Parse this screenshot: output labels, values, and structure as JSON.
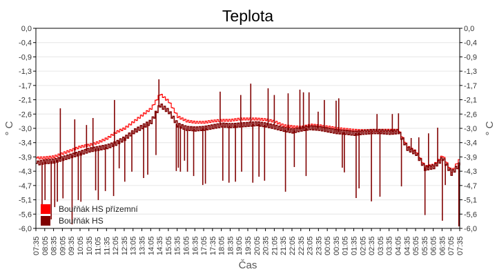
{
  "chart_data": {
    "type": "line",
    "title": "Teplota",
    "xlabel": "Čas",
    "ylabel": "° C",
    "ylabel_right": "° C",
    "ylim": [
      -6.0,
      0.0
    ],
    "y_ticks": [
      "0,0",
      "-0,4",
      "-0,9",
      "-1,3",
      "-1,7",
      "-2,1",
      "-2,6",
      "-3,0",
      "-3,4",
      "-3,9",
      "-4,3",
      "-4,7",
      "-5,1",
      "-5,6",
      "-6,0"
    ],
    "x_ticks": [
      "07:35",
      "08:05",
      "08:35",
      "09:05",
      "09:35",
      "10:05",
      "10:35",
      "11:05",
      "11:35",
      "12:05",
      "12:35",
      "13:05",
      "13:35",
      "14:05",
      "14:35",
      "15:05",
      "15:35",
      "16:05",
      "16:35",
      "17:05",
      "17:35",
      "18:05",
      "18:35",
      "19:05",
      "19:35",
      "20:05",
      "20:35",
      "21:05",
      "21:35",
      "22:05",
      "22:35",
      "23:05",
      "23:35",
      "00:05",
      "00:35",
      "01:05",
      "01:35",
      "02:05",
      "02:35",
      "03:05",
      "03:35",
      "04:05",
      "04:35",
      "05:05",
      "05:35",
      "06:05",
      "06:35",
      "07:05",
      "07:35"
    ],
    "grid": "horizontal",
    "legend_position": "bottom-left",
    "series": [
      {
        "name": "Bouřňák HS přízemní",
        "color": "#ff0000",
        "values": [
          -3.89,
          -3.88,
          -3.85,
          -3.75,
          -3.65,
          -3.55,
          -3.5,
          -3.42,
          -3.3,
          -3.12,
          -3.0,
          -2.8,
          -2.6,
          -2.4,
          -1.97,
          -2.2,
          -2.65,
          -2.78,
          -2.82,
          -2.82,
          -2.78,
          -2.76,
          -2.76,
          -2.72,
          -2.72,
          -2.72,
          -2.74,
          -2.8,
          -2.92,
          -2.95,
          -2.97,
          -2.9,
          -2.92,
          -2.96,
          -3.0,
          -3.03,
          -3.06,
          -3.07,
          -3.06,
          -3.06,
          -3.06,
          -3.06,
          -3.55,
          -3.7,
          -4.15,
          -4.1,
          -3.82,
          -4.3,
          -3.9
        ]
      },
      {
        "name": "Bouřňák HS",
        "color": "#800000",
        "values": [
          -4.05,
          -4.0,
          -3.98,
          -3.9,
          -3.82,
          -3.74,
          -3.65,
          -3.6,
          -3.55,
          -3.45,
          -3.3,
          -3.1,
          -2.95,
          -2.8,
          -2.3,
          -2.5,
          -2.9,
          -3.0,
          -3.02,
          -3.0,
          -2.95,
          -2.9,
          -2.92,
          -2.9,
          -2.88,
          -2.86,
          -2.9,
          -2.96,
          -3.03,
          -3.08,
          -3.02,
          -2.98,
          -3.0,
          -3.05,
          -3.1,
          -3.12,
          -3.15,
          -3.12,
          -3.1,
          -3.1,
          -3.12,
          -3.1,
          -3.6,
          -3.75,
          -4.2,
          -4.15,
          -3.9,
          -4.35,
          -4.05
        ],
        "spikes": [
          [
            "07:56",
            -5.3
          ],
          [
            "08:06",
            -5.15
          ],
          [
            "08:27",
            -5.73
          ],
          [
            "08:39",
            -5.36
          ],
          [
            "08:48",
            -5.2
          ],
          [
            "08:58",
            -2.4
          ],
          [
            "09:07",
            -5.1
          ],
          [
            "09:38",
            -5.88
          ],
          [
            "09:47",
            -2.73
          ],
          [
            "09:59",
            -5.15
          ],
          [
            "10:08",
            -5.2
          ],
          [
            "10:27",
            -2.9
          ],
          [
            "10:49",
            -2.69
          ],
          [
            "10:58",
            -4.86
          ],
          [
            "11:07",
            -5.15
          ],
          [
            "11:31",
            -4.88
          ],
          [
            "11:59",
            -5.03
          ],
          [
            "12:02",
            -2.15
          ],
          [
            "12:18",
            -4.2
          ],
          [
            "12:37",
            -4.6
          ],
          [
            "13:01",
            -4.3
          ],
          [
            "13:41",
            -4.49
          ],
          [
            "13:55",
            -4.39
          ],
          [
            "14:23",
            -3.8
          ],
          [
            "14:33",
            -1.53
          ],
          [
            "15:32",
            -4.28
          ],
          [
            "15:39",
            -4.18
          ],
          [
            "15:46",
            -4.3
          ],
          [
            "16:00",
            -3.97
          ],
          [
            "16:10",
            -4.3
          ],
          [
            "16:31",
            -4.43
          ],
          [
            "17:02",
            -4.7
          ],
          [
            "17:11",
            -4.66
          ],
          [
            "18:01",
            -1.9
          ],
          [
            "18:10",
            -4.57
          ],
          [
            "18:31",
            -4.63
          ],
          [
            "18:53",
            -4.6
          ],
          [
            "19:11",
            -2.0
          ],
          [
            "19:14",
            -4.3
          ],
          [
            "19:45",
            -1.66
          ],
          [
            "19:52",
            -4.63
          ],
          [
            "20:13",
            -4.45
          ],
          [
            "20:32",
            -4.57
          ],
          [
            "20:44",
            -1.8
          ],
          [
            "21:05",
            -2.0
          ],
          [
            "21:43",
            -4.9
          ],
          [
            "21:52",
            -1.95
          ],
          [
            "22:13",
            -4.16
          ],
          [
            "22:32",
            -1.84
          ],
          [
            "22:44",
            -1.92
          ],
          [
            "22:53",
            -4.43
          ],
          [
            "23:03",
            -1.92
          ],
          [
            "23:34",
            -2.5
          ],
          [
            "23:55",
            -2.15
          ],
          [
            "00:35",
            -2.17
          ],
          [
            "00:44",
            -2.1
          ],
          [
            "00:56",
            -4.18
          ],
          [
            "01:03",
            -4.32
          ],
          [
            "01:43",
            -5.09
          ],
          [
            "01:53",
            -4.8
          ],
          [
            "02:35",
            -5.19
          ],
          [
            "02:54",
            -2.57
          ],
          [
            "03:04",
            -5.05
          ],
          [
            "03:46",
            -2.57
          ],
          [
            "04:07",
            -2.55
          ],
          [
            "04:17",
            -4.74
          ],
          [
            "04:50",
            -3.29
          ],
          [
            "05:16",
            -3.27
          ],
          [
            "05:37",
            -5.6
          ],
          [
            "05:49",
            -3.15
          ],
          [
            "06:20",
            -2.98
          ],
          [
            "06:36",
            -5.77
          ],
          [
            "06:46",
            -4.7
          ],
          [
            "07:32",
            -5.94
          ]
        ]
      }
    ]
  }
}
